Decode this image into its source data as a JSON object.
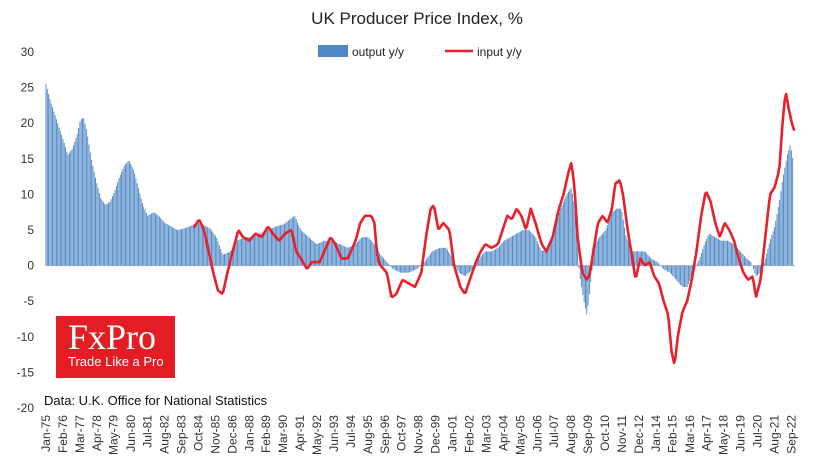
{
  "chart_data": {
    "type": "bar+line",
    "title": "UK Producer Price Index, %",
    "source": "Data: U.K. Office for National Statistics",
    "ylim": [
      -20,
      30
    ],
    "yticks": [
      30,
      25,
      20,
      15,
      10,
      5,
      0,
      -5,
      -10,
      -15,
      -20
    ],
    "xlim": [
      1975.0,
      2022.9
    ],
    "xticks": [
      {
        "label": "Jan-75",
        "x": 1975.0
      },
      {
        "label": "Feb-76",
        "x": 1976.08
      },
      {
        "label": "Mar-77",
        "x": 1977.17
      },
      {
        "label": "Apr-78",
        "x": 1978.25
      },
      {
        "label": "May-79",
        "x": 1979.33
      },
      {
        "label": "Jun-80",
        "x": 1980.42
      },
      {
        "label": "Jul-81",
        "x": 1981.5
      },
      {
        "label": "Aug-82",
        "x": 1982.58
      },
      {
        "label": "Sep-83",
        "x": 1983.67
      },
      {
        "label": "Oct-84",
        "x": 1984.75
      },
      {
        "label": "Nov-85",
        "x": 1985.83
      },
      {
        "label": "Dec-86",
        "x": 1986.92
      },
      {
        "label": "Jan-88",
        "x": 1988.0
      },
      {
        "label": "Feb-89",
        "x": 1989.08
      },
      {
        "label": "Mar-90",
        "x": 1990.17
      },
      {
        "label": "Apr-91",
        "x": 1991.25
      },
      {
        "label": "May-92",
        "x": 1992.33
      },
      {
        "label": "Jun-93",
        "x": 1993.42
      },
      {
        "label": "Jul-94",
        "x": 1994.5
      },
      {
        "label": "Aug-95",
        "x": 1995.58
      },
      {
        "label": "Sep-96",
        "x": 1996.67
      },
      {
        "label": "Oct-97",
        "x": 1997.75
      },
      {
        "label": "Nov-98",
        "x": 1998.83
      },
      {
        "label": "Dec-99",
        "x": 1999.92
      },
      {
        "label": "Jan-01",
        "x": 2001.0
      },
      {
        "label": "Feb-02",
        "x": 2002.08
      },
      {
        "label": "Mar-03",
        "x": 2003.17
      },
      {
        "label": "Apr-04",
        "x": 2004.25
      },
      {
        "label": "May-05",
        "x": 2005.33
      },
      {
        "label": "Jun-06",
        "x": 2006.42
      },
      {
        "label": "Jul-07",
        "x": 2007.5
      },
      {
        "label": "Aug-08",
        "x": 2008.58
      },
      {
        "label": "Sep-09",
        "x": 2009.67
      },
      {
        "label": "Oct-10",
        "x": 2010.75
      },
      {
        "label": "Nov-11",
        "x": 2011.83
      },
      {
        "label": "Dec-12",
        "x": 2012.92
      },
      {
        "label": "Jan-14",
        "x": 2014.0
      },
      {
        "label": "Feb-15",
        "x": 2015.08
      },
      {
        "label": "Mar-16",
        "x": 2016.17
      },
      {
        "label": "Apr-17",
        "x": 2017.25
      },
      {
        "label": "May-18",
        "x": 2018.33
      },
      {
        "label": "Jun-19",
        "x": 2019.42
      },
      {
        "label": "Jul-20",
        "x": 2020.5
      },
      {
        "label": "Aug-21",
        "x": 2021.58
      },
      {
        "label": "Sep-22",
        "x": 2022.67
      }
    ],
    "series": [
      {
        "name": "output y/y",
        "kind": "bar",
        "color": "#4f88c6",
        "points": [
          [
            1975.0,
            25.5
          ],
          [
            1975.3,
            23
          ],
          [
            1975.6,
            21
          ],
          [
            1975.9,
            19
          ],
          [
            1976.2,
            17
          ],
          [
            1976.4,
            15.5
          ],
          [
            1976.7,
            16.5
          ],
          [
            1977.0,
            18.5
          ],
          [
            1977.2,
            20.5
          ],
          [
            1977.4,
            20.8
          ],
          [
            1977.6,
            19
          ],
          [
            1977.9,
            15
          ],
          [
            1978.2,
            12
          ],
          [
            1978.5,
            9.5
          ],
          [
            1978.8,
            8.5
          ],
          [
            1979.1,
            9
          ],
          [
            1979.4,
            10.5
          ],
          [
            1979.7,
            12.5
          ],
          [
            1980.0,
            14
          ],
          [
            1980.3,
            14.8
          ],
          [
            1980.6,
            13.5
          ],
          [
            1980.9,
            11
          ],
          [
            1981.2,
            8.5
          ],
          [
            1981.5,
            7
          ],
          [
            1981.9,
            7.5
          ],
          [
            1982.2,
            7
          ],
          [
            1982.6,
            6
          ],
          [
            1983.0,
            5.5
          ],
          [
            1983.4,
            5
          ],
          [
            1983.8,
            5.2
          ],
          [
            1984.2,
            5.5
          ],
          [
            1984.6,
            6
          ],
          [
            1985.0,
            5.8
          ],
          [
            1985.5,
            5.2
          ],
          [
            1985.9,
            4
          ],
          [
            1986.3,
            1.5
          ],
          [
            1986.8,
            2
          ],
          [
            1987.2,
            3.5
          ],
          [
            1987.7,
            4
          ],
          [
            1988.2,
            4
          ],
          [
            1988.7,
            4.5
          ],
          [
            1989.2,
            5
          ],
          [
            1989.7,
            5.5
          ],
          [
            1990.2,
            5.8
          ],
          [
            1990.6,
            6.5
          ],
          [
            1990.9,
            7
          ],
          [
            1991.3,
            5
          ],
          [
            1991.8,
            4
          ],
          [
            1992.3,
            3
          ],
          [
            1992.8,
            3.5
          ],
          [
            1993.3,
            3.5
          ],
          [
            1993.8,
            3
          ],
          [
            1994.3,
            2.5
          ],
          [
            1994.8,
            3
          ],
          [
            1995.2,
            4
          ],
          [
            1995.6,
            4
          ],
          [
            1996.0,
            3
          ],
          [
            1996.4,
            1.5
          ],
          [
            1996.8,
            0.5
          ],
          [
            1997.2,
            -0.5
          ],
          [
            1997.7,
            -1
          ],
          [
            1998.2,
            -1
          ],
          [
            1998.7,
            -0.5
          ],
          [
            1999.2,
            0.5
          ],
          [
            1999.7,
            2
          ],
          [
            2000.2,
            2.5
          ],
          [
            2000.6,
            2.5
          ],
          [
            2001.0,
            1
          ],
          [
            2001.4,
            -1
          ],
          [
            2001.8,
            -1.5
          ],
          [
            2002.3,
            -0.5
          ],
          [
            2002.7,
            1
          ],
          [
            2003.1,
            2
          ],
          [
            2003.5,
            2
          ],
          [
            2003.9,
            2.5
          ],
          [
            2004.3,
            3.5
          ],
          [
            2004.7,
            4
          ],
          [
            2005.1,
            4.5
          ],
          [
            2005.5,
            5
          ],
          [
            2005.9,
            5
          ],
          [
            2006.3,
            4
          ],
          [
            2006.7,
            2
          ],
          [
            2007.1,
            2.5
          ],
          [
            2007.5,
            5
          ],
          [
            2007.9,
            8
          ],
          [
            2008.3,
            10
          ],
          [
            2008.6,
            11
          ],
          [
            2008.9,
            7
          ],
          [
            2009.1,
            -1
          ],
          [
            2009.4,
            -5
          ],
          [
            2009.6,
            -7
          ],
          [
            2009.8,
            -3
          ],
          [
            2010.1,
            3
          ],
          [
            2010.4,
            4
          ],
          [
            2010.8,
            5
          ],
          [
            2011.2,
            7.5
          ],
          [
            2011.5,
            8
          ],
          [
            2011.8,
            8
          ],
          [
            2012.1,
            4
          ],
          [
            2012.5,
            2
          ],
          [
            2012.9,
            2
          ],
          [
            2013.3,
            2
          ],
          [
            2013.7,
            1
          ],
          [
            2014.1,
            0.5
          ],
          [
            2014.5,
            -0.5
          ],
          [
            2014.9,
            -1
          ],
          [
            2015.3,
            -2
          ],
          [
            2015.7,
            -3
          ],
          [
            2016.0,
            -3
          ],
          [
            2016.4,
            -1
          ],
          [
            2016.8,
            1
          ],
          [
            2017.1,
            3
          ],
          [
            2017.4,
            4.5
          ],
          [
            2017.8,
            4
          ],
          [
            2018.2,
            3.5
          ],
          [
            2018.6,
            3.5
          ],
          [
            2019.0,
            3
          ],
          [
            2019.4,
            2
          ],
          [
            2019.8,
            1
          ],
          [
            2020.1,
            0.5
          ],
          [
            2020.4,
            -1.5
          ],
          [
            2020.7,
            -1
          ],
          [
            2021.0,
            1
          ],
          [
            2021.3,
            3.5
          ],
          [
            2021.6,
            5.5
          ],
          [
            2021.9,
            9
          ],
          [
            2022.1,
            12
          ],
          [
            2022.4,
            15.5
          ],
          [
            2022.6,
            17
          ],
          [
            2022.8,
            14.5
          ]
        ]
      },
      {
        "name": "input y/y",
        "kind": "line",
        "color": "#e8202a",
        "points": [
          [
            1984.5,
            5.5
          ],
          [
            1984.8,
            6.5
          ],
          [
            1985.1,
            5
          ],
          [
            1985.4,
            2
          ],
          [
            1985.7,
            -1
          ],
          [
            1986.0,
            -3.5
          ],
          [
            1986.3,
            -4
          ],
          [
            1986.6,
            -1
          ],
          [
            1987.0,
            2.5
          ],
          [
            1987.3,
            5
          ],
          [
            1987.6,
            4
          ],
          [
            1988.0,
            3.5
          ],
          [
            1988.4,
            4.5
          ],
          [
            1988.8,
            4
          ],
          [
            1989.2,
            5.5
          ],
          [
            1989.5,
            4.5
          ],
          [
            1989.9,
            3.5
          ],
          [
            1990.3,
            4.5
          ],
          [
            1990.7,
            5
          ],
          [
            1991.0,
            2
          ],
          [
            1991.3,
            1
          ],
          [
            1991.7,
            -0.5
          ],
          [
            1992.0,
            0.5
          ],
          [
            1992.5,
            0.5
          ],
          [
            1992.9,
            2.5
          ],
          [
            1993.2,
            4
          ],
          [
            1993.5,
            3
          ],
          [
            1993.9,
            1
          ],
          [
            1994.3,
            1
          ],
          [
            1994.8,
            3.5
          ],
          [
            1995.1,
            6
          ],
          [
            1995.4,
            7
          ],
          [
            1995.8,
            7
          ],
          [
            1996.0,
            6
          ],
          [
            1996.2,
            1
          ],
          [
            1996.4,
            0
          ],
          [
            1996.8,
            -1
          ],
          [
            1997.1,
            -4.5
          ],
          [
            1997.4,
            -4
          ],
          [
            1997.8,
            -2
          ],
          [
            1998.2,
            -2.5
          ],
          [
            1998.6,
            -3
          ],
          [
            1999.0,
            -1
          ],
          [
            1999.3,
            4
          ],
          [
            1999.6,
            8
          ],
          [
            1999.8,
            8.5
          ],
          [
            2000.1,
            5
          ],
          [
            2000.4,
            6
          ],
          [
            2000.8,
            5
          ],
          [
            2001.1,
            0
          ],
          [
            2001.5,
            -3
          ],
          [
            2001.8,
            -4
          ],
          [
            2002.1,
            -2
          ],
          [
            2002.5,
            0.5
          ],
          [
            2002.8,
            2
          ],
          [
            2003.1,
            3
          ],
          [
            2003.5,
            2.5
          ],
          [
            2003.9,
            3
          ],
          [
            2004.2,
            5
          ],
          [
            2004.5,
            7
          ],
          [
            2004.8,
            6.5
          ],
          [
            2005.1,
            8
          ],
          [
            2005.4,
            7
          ],
          [
            2005.7,
            5
          ],
          [
            2006.0,
            8
          ],
          [
            2006.3,
            6
          ],
          [
            2006.7,
            3
          ],
          [
            2007.0,
            2
          ],
          [
            2007.4,
            4
          ],
          [
            2007.8,
            8
          ],
          [
            2008.1,
            10
          ],
          [
            2008.4,
            13
          ],
          [
            2008.6,
            14.5
          ],
          [
            2008.8,
            11
          ],
          [
            2009.0,
            4
          ],
          [
            2009.3,
            -1
          ],
          [
            2009.6,
            -2
          ],
          [
            2009.8,
            -1
          ],
          [
            2010.0,
            2
          ],
          [
            2010.3,
            6
          ],
          [
            2010.6,
            7
          ],
          [
            2010.9,
            6
          ],
          [
            2011.2,
            8
          ],
          [
            2011.4,
            11.5
          ],
          [
            2011.7,
            12
          ],
          [
            2011.9,
            10
          ],
          [
            2012.2,
            5
          ],
          [
            2012.5,
            1
          ],
          [
            2012.7,
            -2
          ],
          [
            2013.0,
            1
          ],
          [
            2013.3,
            0
          ],
          [
            2013.6,
            0.5
          ],
          [
            2013.9,
            -1.5
          ],
          [
            2014.2,
            -2.5
          ],
          [
            2014.5,
            -5
          ],
          [
            2014.8,
            -7
          ],
          [
            2015.0,
            -12
          ],
          [
            2015.2,
            -14
          ],
          [
            2015.4,
            -10
          ],
          [
            2015.7,
            -6.5
          ],
          [
            2016.0,
            -5
          ],
          [
            2016.3,
            -2
          ],
          [
            2016.6,
            2
          ],
          [
            2016.9,
            7
          ],
          [
            2017.2,
            10.5
          ],
          [
            2017.5,
            9
          ],
          [
            2017.8,
            6
          ],
          [
            2018.1,
            4
          ],
          [
            2018.4,
            6
          ],
          [
            2018.7,
            5
          ],
          [
            2019.0,
            3.5
          ],
          [
            2019.3,
            1
          ],
          [
            2019.6,
            -1
          ],
          [
            2019.9,
            -2
          ],
          [
            2020.2,
            -1.5
          ],
          [
            2020.4,
            -4.5
          ],
          [
            2020.7,
            -2
          ],
          [
            2021.0,
            4
          ],
          [
            2021.3,
            10
          ],
          [
            2021.6,
            11
          ],
          [
            2021.9,
            13.5
          ],
          [
            2022.1,
            20
          ],
          [
            2022.3,
            24.5
          ],
          [
            2022.5,
            22
          ],
          [
            2022.7,
            20
          ],
          [
            2022.85,
            19
          ]
        ]
      }
    ]
  },
  "legend": {
    "output_label": "output y/y",
    "input_label": "input y/y",
    "output_color": "#4f88c6",
    "input_color": "#e8202a"
  },
  "logo": {
    "main": "FxPro",
    "sub": "Trade Like a Pro",
    "color": "#e41c23"
  }
}
